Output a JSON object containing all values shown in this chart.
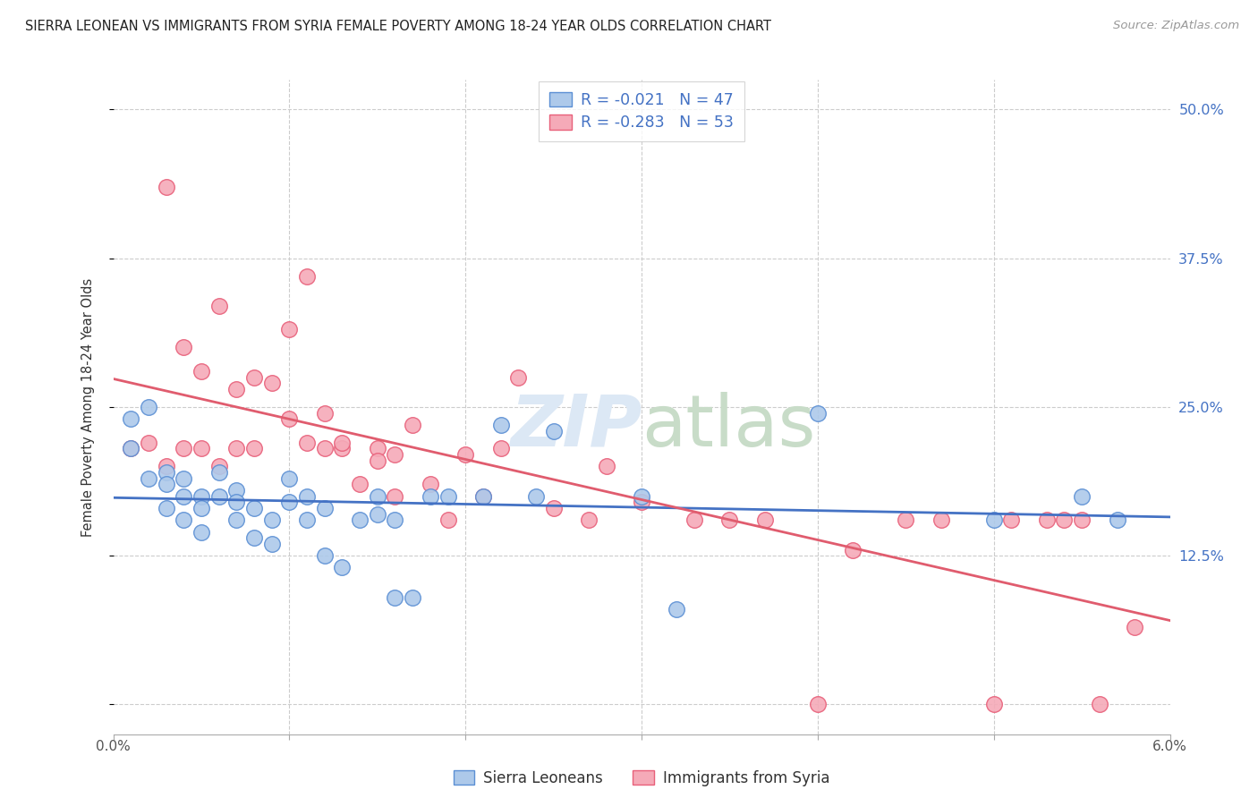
{
  "title": "SIERRA LEONEAN VS IMMIGRANTS FROM SYRIA FEMALE POVERTY AMONG 18-24 YEAR OLDS CORRELATION CHART",
  "source": "Source: ZipAtlas.com",
  "ylabel": "Female Poverty Among 18-24 Year Olds",
  "yticks": [
    0.0,
    0.125,
    0.25,
    0.375,
    0.5
  ],
  "ytick_labels": [
    "",
    "12.5%",
    "25.0%",
    "37.5%",
    "50.0%"
  ],
  "xmin": 0.0,
  "xmax": 0.06,
  "ymin": -0.025,
  "ymax": 0.525,
  "blue_R": -0.021,
  "blue_N": 47,
  "pink_R": -0.283,
  "pink_N": 53,
  "blue_color": "#adc9ea",
  "pink_color": "#f5aab8",
  "blue_edge_color": "#5b8fd4",
  "pink_edge_color": "#e8607a",
  "blue_line_color": "#4472c4",
  "pink_line_color": "#e05c6e",
  "legend_label_blue": "Sierra Leoneans",
  "legend_label_pink": "Immigrants from Syria",
  "blue_scatter_x": [
    0.001,
    0.001,
    0.002,
    0.002,
    0.003,
    0.003,
    0.003,
    0.004,
    0.004,
    0.004,
    0.005,
    0.005,
    0.005,
    0.006,
    0.006,
    0.007,
    0.007,
    0.007,
    0.008,
    0.008,
    0.009,
    0.009,
    0.01,
    0.01,
    0.011,
    0.011,
    0.012,
    0.012,
    0.013,
    0.014,
    0.015,
    0.015,
    0.016,
    0.016,
    0.017,
    0.018,
    0.019,
    0.021,
    0.022,
    0.024,
    0.025,
    0.03,
    0.032,
    0.04,
    0.05,
    0.055,
    0.057
  ],
  "blue_scatter_y": [
    0.24,
    0.215,
    0.25,
    0.19,
    0.195,
    0.185,
    0.165,
    0.175,
    0.19,
    0.155,
    0.175,
    0.165,
    0.145,
    0.195,
    0.175,
    0.18,
    0.17,
    0.155,
    0.165,
    0.14,
    0.155,
    0.135,
    0.19,
    0.17,
    0.175,
    0.155,
    0.165,
    0.125,
    0.115,
    0.155,
    0.175,
    0.16,
    0.155,
    0.09,
    0.09,
    0.175,
    0.175,
    0.175,
    0.235,
    0.175,
    0.23,
    0.175,
    0.08,
    0.245,
    0.155,
    0.175,
    0.155
  ],
  "pink_scatter_x": [
    0.001,
    0.002,
    0.003,
    0.003,
    0.004,
    0.004,
    0.005,
    0.005,
    0.006,
    0.006,
    0.007,
    0.007,
    0.008,
    0.008,
    0.009,
    0.01,
    0.01,
    0.011,
    0.011,
    0.012,
    0.012,
    0.013,
    0.013,
    0.014,
    0.015,
    0.015,
    0.016,
    0.016,
    0.017,
    0.018,
    0.019,
    0.02,
    0.021,
    0.022,
    0.023,
    0.025,
    0.027,
    0.028,
    0.03,
    0.033,
    0.035,
    0.037,
    0.04,
    0.042,
    0.045,
    0.047,
    0.05,
    0.051,
    0.053,
    0.054,
    0.055,
    0.056,
    0.058
  ],
  "pink_scatter_y": [
    0.215,
    0.22,
    0.435,
    0.2,
    0.3,
    0.215,
    0.28,
    0.215,
    0.335,
    0.2,
    0.265,
    0.215,
    0.275,
    0.215,
    0.27,
    0.24,
    0.315,
    0.36,
    0.22,
    0.245,
    0.215,
    0.215,
    0.22,
    0.185,
    0.215,
    0.205,
    0.21,
    0.175,
    0.235,
    0.185,
    0.155,
    0.21,
    0.175,
    0.215,
    0.275,
    0.165,
    0.155,
    0.2,
    0.17,
    0.155,
    0.155,
    0.155,
    0.0,
    0.13,
    0.155,
    0.155,
    0.0,
    0.155,
    0.155,
    0.155,
    0.155,
    0.0,
    0.065
  ]
}
